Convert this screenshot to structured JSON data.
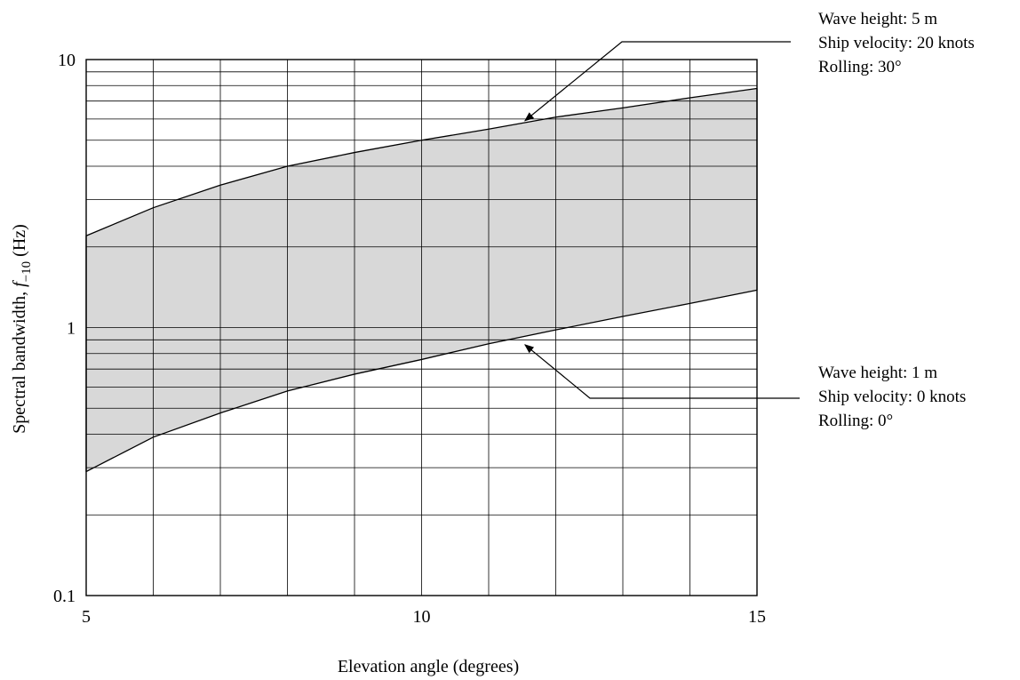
{
  "chart_data": {
    "type": "area",
    "title": "",
    "xlabel": "Elevation angle (degrees)",
    "ylabel": {
      "prefix": "Spectral bandwidth, ",
      "symbol": "f",
      "subscript": "−10",
      "suffix": " (Hz)"
    },
    "xlim": [
      5,
      15
    ],
    "ylim": [
      0.1,
      10
    ],
    "yscale": "log",
    "grid": true,
    "x_ticks": [
      5,
      10,
      15
    ],
    "x_tick_labels": [
      "5",
      "10",
      "15"
    ],
    "y_ticks": [
      0.1,
      1,
      10
    ],
    "y_tick_labels": [
      "0.1",
      "1",
      "10"
    ],
    "series": [
      {
        "x": [
          5,
          6,
          7,
          8,
          9,
          10,
          11,
          12,
          13,
          14,
          15
        ],
        "values": [
          2.2,
          2.8,
          3.4,
          4.0,
          4.5,
          5.0,
          5.5,
          6.1,
          6.6,
          7.2,
          7.8
        ]
      },
      {
        "x": [
          5,
          6,
          7,
          8,
          9,
          10,
          11,
          12,
          13,
          14,
          15
        ],
        "values": [
          0.29,
          0.39,
          0.48,
          0.58,
          0.67,
          0.76,
          0.87,
          0.98,
          1.1,
          1.23,
          1.38
        ]
      }
    ],
    "annotations": [
      {
        "lines": [
          "Wave height: 5 m",
          "Ship velocity: 20 knots",
          "Rolling: 30°"
        ],
        "target": {
          "x": 11.5,
          "y": 5.8
        }
      },
      {
        "lines": [
          "Wave height: 1 m",
          "Ship velocity: 0 knots",
          "Rolling: 0°"
        ],
        "target": {
          "x": 11.5,
          "y": 0.88
        }
      }
    ]
  }
}
